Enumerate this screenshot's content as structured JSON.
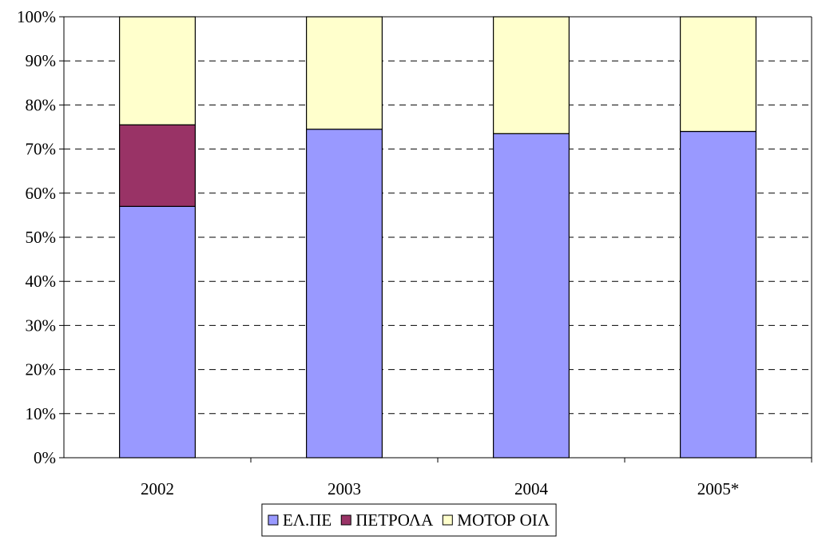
{
  "chart_data": {
    "type": "bar",
    "stacked": true,
    "percent": true,
    "title": "",
    "xlabel": "",
    "ylabel": "",
    "categories": [
      "2002",
      "2003",
      "2004",
      "2005*"
    ],
    "series": [
      {
        "name": "ΕΛ.ΠΕ",
        "values": [
          57,
          74.5,
          73.5,
          74
        ],
        "color": "#9999ff"
      },
      {
        "name": "ΠΕΤΡΟΛΑ",
        "values": [
          18.5,
          0,
          0,
          0
        ],
        "color": "#993366"
      },
      {
        "name": "ΜΟΤΟΡ ΟΙΛ",
        "values": [
          24.5,
          25.5,
          26.5,
          26
        ],
        "color": "#ffffcc"
      }
    ],
    "ylim": [
      0,
      100
    ],
    "yticks": [
      0,
      10,
      20,
      30,
      40,
      50,
      60,
      70,
      80,
      90,
      100
    ],
    "ytick_labels": [
      "0%",
      "10%",
      "20%",
      "30%",
      "40%",
      "50%",
      "60%",
      "70%",
      "80%",
      "90%",
      "100%"
    ],
    "grid": true,
    "grid_style": "dashed",
    "legend_position": "bottom"
  }
}
